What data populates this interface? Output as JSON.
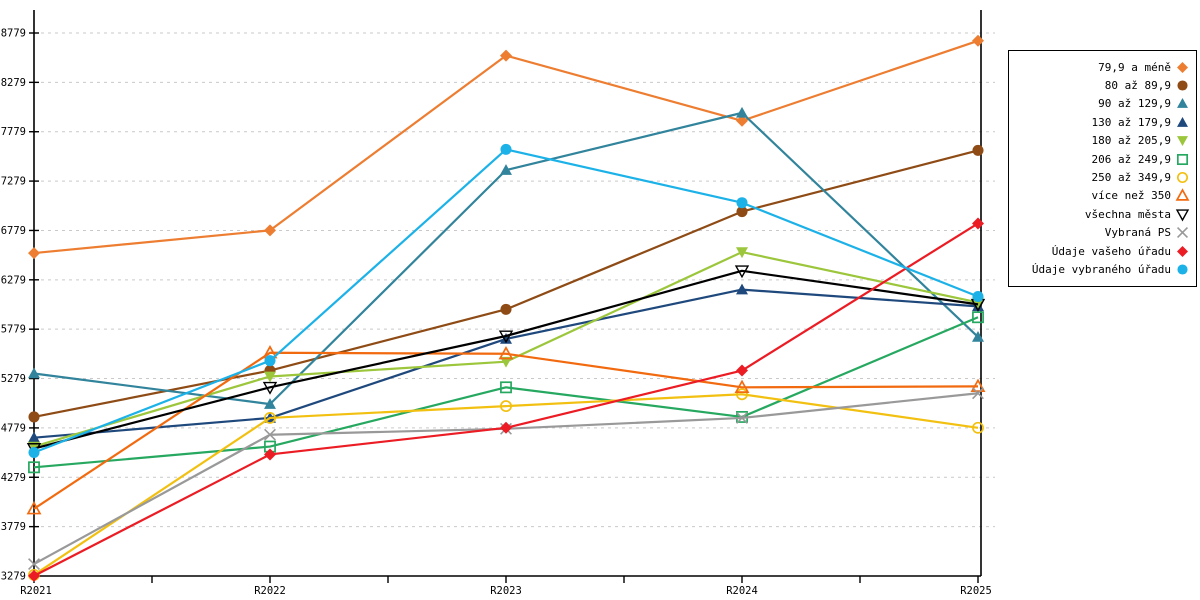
{
  "chart_data": {
    "type": "line",
    "title": "",
    "xlabel": "",
    "ylabel": "",
    "categories": [
      "R2021",
      "R2022",
      "R2023",
      "R2024",
      "R2025"
    ],
    "ylim": [
      3279,
      8779
    ],
    "yticks": [
      3279,
      3779,
      4279,
      4779,
      5279,
      5779,
      6279,
      6779,
      7279,
      7779,
      8279,
      8779
    ],
    "grid": "horizontal-dashed",
    "grid_color": "#c9c9c9",
    "axis_color": "#000000",
    "legend_position": "right",
    "series": [
      {
        "name": "79,9 a méně",
        "marker": "diamond",
        "color": "#ED7D31",
        "values": [
          6550,
          6780,
          8550,
          7890,
          8700
        ]
      },
      {
        "name": "80 až 89,9",
        "marker": "circle",
        "color": "#8E4B15",
        "values": [
          4890,
          5360,
          5980,
          6970,
          7590
        ]
      },
      {
        "name": "90 až 129,9",
        "marker": "triangle",
        "color": "#31849B",
        "values": [
          5330,
          5020,
          7390,
          7970,
          5700
        ]
      },
      {
        "name": "130 až 179,9",
        "marker": "triangle",
        "color": "#1F497D",
        "values": [
          4680,
          4880,
          5680,
          6180,
          6010
        ]
      },
      {
        "name": "180 až 205,9",
        "marker": "triangle-down",
        "color": "#9CC63C",
        "values": [
          4590,
          5300,
          5450,
          6560,
          6050
        ]
      },
      {
        "name": "206 až 249,9",
        "marker": "square-open",
        "color": "#27A860",
        "values": [
          4380,
          4590,
          5190,
          4890,
          5900
        ]
      },
      {
        "name": "250 až 349,9",
        "marker": "circle-open",
        "color": "#F2C011",
        "values": [
          3290,
          4880,
          5000,
          5120,
          4780
        ]
      },
      {
        "name": "více než 350",
        "marker": "triangle-open",
        "color": "#F26A0F",
        "values": [
          3960,
          5540,
          5530,
          5190,
          5200
        ]
      },
      {
        "name": "všechna města",
        "marker": "triangle-down-open",
        "color": "#000000",
        "values": [
          4570,
          5190,
          5710,
          6370,
          6030
        ]
      },
      {
        "name": "Vybraná PS",
        "marker": "x",
        "color": "#999999",
        "values": [
          3400,
          4710,
          4770,
          4880,
          5130
        ]
      },
      {
        "name": "Údaje vašeho úřadu",
        "marker": "diamond",
        "color": "#EB1C24",
        "values": [
          3280,
          4510,
          4780,
          5360,
          6850
        ]
      },
      {
        "name": "Údaje vybraného úřadu",
        "marker": "circle",
        "color": "#1CB2E8",
        "values": [
          4530,
          5460,
          7600,
          7060,
          6110
        ]
      }
    ]
  }
}
